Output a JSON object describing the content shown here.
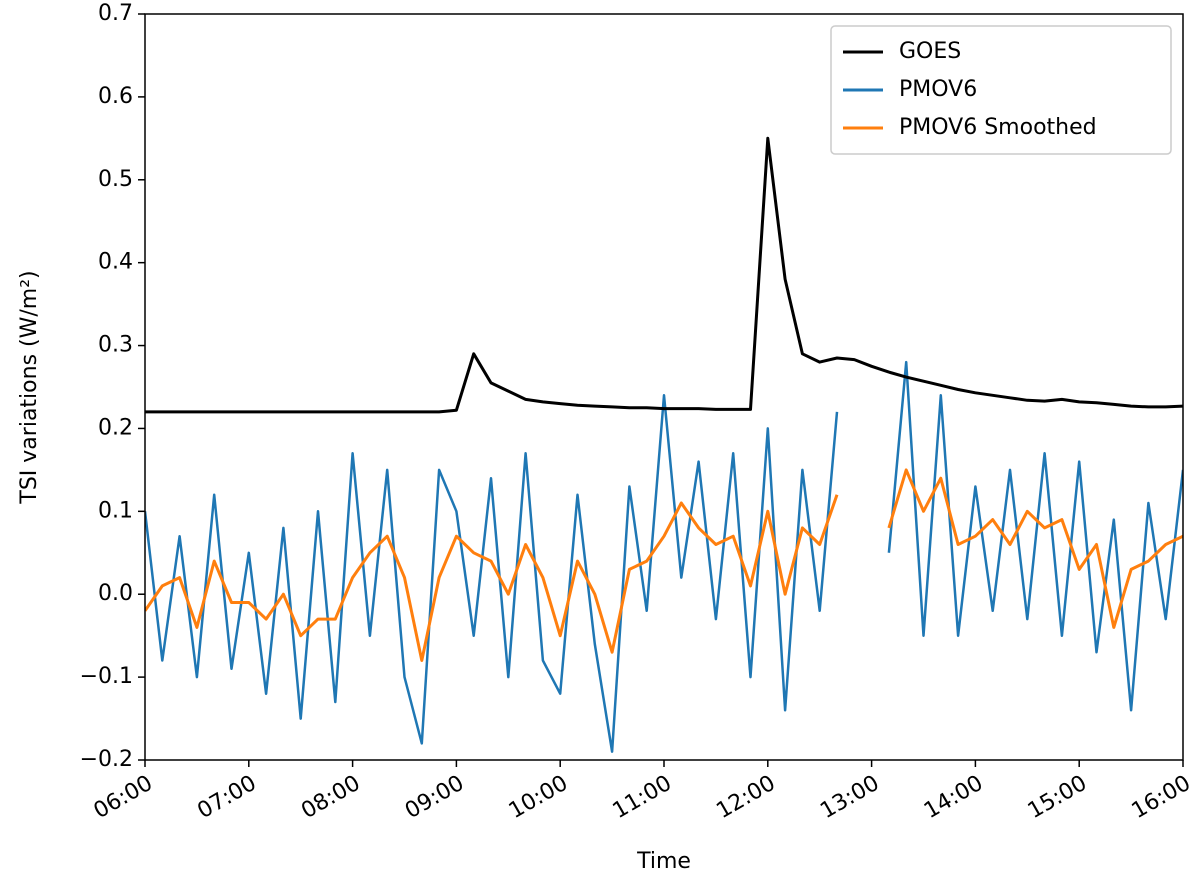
{
  "chart_data": {
    "type": "line",
    "x_label": "Time",
    "y_label": "TSI variations (W/m²)",
    "xlim": [
      "06:00",
      "16:00"
    ],
    "xticks": [
      "06:00",
      "07:00",
      "08:00",
      "09:00",
      "10:00",
      "11:00",
      "12:00",
      "13:00",
      "14:00",
      "15:00",
      "16:00"
    ],
    "ylim": [
      -0.2,
      0.7
    ],
    "yticks": [
      {
        "value": -0.2,
        "label": "−0.2"
      },
      {
        "value": -0.1,
        "label": "−0.1"
      },
      {
        "value": 0,
        "label": "0.0"
      },
      0.1,
      0.2,
      0.3,
      0.4,
      0.5,
      0.6,
      0.7
    ],
    "legend": "upper right",
    "x": [
      "06:00",
      "06:10",
      "06:20",
      "06:30",
      "06:40",
      "06:50",
      "07:00",
      "07:10",
      "07:20",
      "07:30",
      "07:40",
      "07:50",
      "08:00",
      "08:10",
      "08:20",
      "08:30",
      "08:40",
      "08:50",
      "09:00",
      "09:10",
      "09:20",
      "09:30",
      "09:40",
      "09:50",
      "10:00",
      "10:10",
      "10:20",
      "10:30",
      "10:40",
      "10:50",
      "11:00",
      "11:10",
      "11:20",
      "11:30",
      "11:40",
      "11:50",
      "12:00",
      "12:10",
      "12:20",
      "12:30",
      "12:40",
      "12:50",
      "13:00",
      "13:10",
      "13:20",
      "13:30",
      "13:40",
      "13:50",
      "14:00",
      "14:10",
      "14:20",
      "14:30",
      "14:40",
      "14:50",
      "15:00",
      "15:10",
      "15:20",
      "15:30",
      "15:40",
      "15:50",
      "16:00"
    ],
    "series": [
      {
        "name": "GOES",
        "color": "#000000",
        "values": [
          0.22,
          0.22,
          0.22,
          0.22,
          0.22,
          0.22,
          0.22,
          0.22,
          0.22,
          0.22,
          0.22,
          0.22,
          0.22,
          0.22,
          0.22,
          0.22,
          0.22,
          0.22,
          0.222,
          0.29,
          0.255,
          0.245,
          0.235,
          0.232,
          0.23,
          0.228,
          0.227,
          0.226,
          0.225,
          0.225,
          0.224,
          0.224,
          0.224,
          0.223,
          0.223,
          0.223,
          0.55,
          0.38,
          0.29,
          0.28,
          0.285,
          0.283,
          0.275,
          0.268,
          0.262,
          0.257,
          0.252,
          0.247,
          0.243,
          0.24,
          0.237,
          0.234,
          0.233,
          0.235,
          0.232,
          0.231,
          0.229,
          0.227,
          0.226,
          0.226,
          0.227
        ]
      },
      {
        "name": "PMOV6",
        "color": "#1f77b4",
        "values": [
          0.1,
          -0.08,
          0.07,
          -0.1,
          0.12,
          -0.09,
          0.05,
          -0.12,
          0.08,
          -0.15,
          0.1,
          -0.13,
          0.17,
          -0.05,
          0.15,
          -0.1,
          -0.18,
          0.15,
          0.1,
          -0.05,
          0.14,
          -0.1,
          0.17,
          -0.08,
          -0.12,
          0.12,
          -0.06,
          -0.19,
          0.13,
          -0.02,
          0.24,
          0.02,
          0.16,
          -0.03,
          0.17,
          -0.1,
          0.2,
          -0.14,
          0.15,
          -0.02,
          0.22,
          null,
          null,
          0.05,
          0.28,
          -0.05,
          0.24,
          -0.05,
          0.13,
          -0.02,
          0.15,
          -0.03,
          0.17,
          -0.05,
          0.16,
          -0.07,
          0.09,
          -0.14,
          0.11,
          -0.03,
          0.15
        ]
      },
      {
        "name": "PMOV6 Smoothed",
        "color": "#ff7f0e",
        "values": [
          -0.02,
          0.01,
          0.02,
          -0.04,
          0.04,
          -0.01,
          -0.01,
          -0.03,
          0.0,
          -0.05,
          -0.03,
          -0.03,
          0.02,
          0.05,
          0.07,
          0.02,
          -0.08,
          0.02,
          0.07,
          0.05,
          0.04,
          0.0,
          0.06,
          0.02,
          -0.05,
          0.04,
          0.0,
          -0.07,
          0.03,
          0.04,
          0.07,
          0.11,
          0.08,
          0.06,
          0.07,
          0.01,
          0.1,
          0.0,
          0.08,
          0.06,
          0.12,
          null,
          null,
          0.08,
          0.15,
          0.1,
          0.14,
          0.06,
          0.07,
          0.09,
          0.06,
          0.1,
          0.08,
          0.09,
          0.03,
          0.06,
          -0.04,
          0.03,
          0.04,
          0.06,
          0.07
        ]
      }
    ]
  }
}
